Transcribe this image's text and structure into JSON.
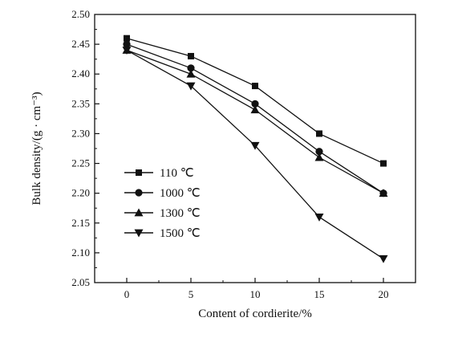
{
  "chart_data": {
    "type": "line",
    "title": "",
    "xlabel": "Content of cordierite/%",
    "ylabel": "Bulk density/(g · cm⁻³)",
    "x": [
      0,
      5,
      10,
      15,
      20
    ],
    "xticks": [
      "0",
      "5",
      "10",
      "15",
      "20"
    ],
    "xlim": [
      -2.5,
      22.5
    ],
    "ylim": [
      2.05,
      2.5
    ],
    "yticks": [
      "2.05",
      "2.10",
      "2.15",
      "2.20",
      "2.25",
      "2.30",
      "2.35",
      "2.40",
      "2.45",
      "2.50"
    ],
    "grid": false,
    "legend_position": "bottom-left",
    "series": [
      {
        "name": "110  ℃",
        "marker": "square",
        "values": [
          2.46,
          2.43,
          2.38,
          2.3,
          2.25
        ]
      },
      {
        "name": "1000  ℃",
        "marker": "circle",
        "values": [
          2.45,
          2.41,
          2.35,
          2.27,
          2.2
        ]
      },
      {
        "name": "1300  ℃",
        "marker": "triangle-up",
        "values": [
          2.44,
          2.4,
          2.34,
          2.26,
          2.2
        ]
      },
      {
        "name": "1500  ℃",
        "marker": "triangle-down",
        "values": [
          2.44,
          2.38,
          2.28,
          2.16,
          2.09
        ]
      }
    ],
    "color": "#111111"
  }
}
